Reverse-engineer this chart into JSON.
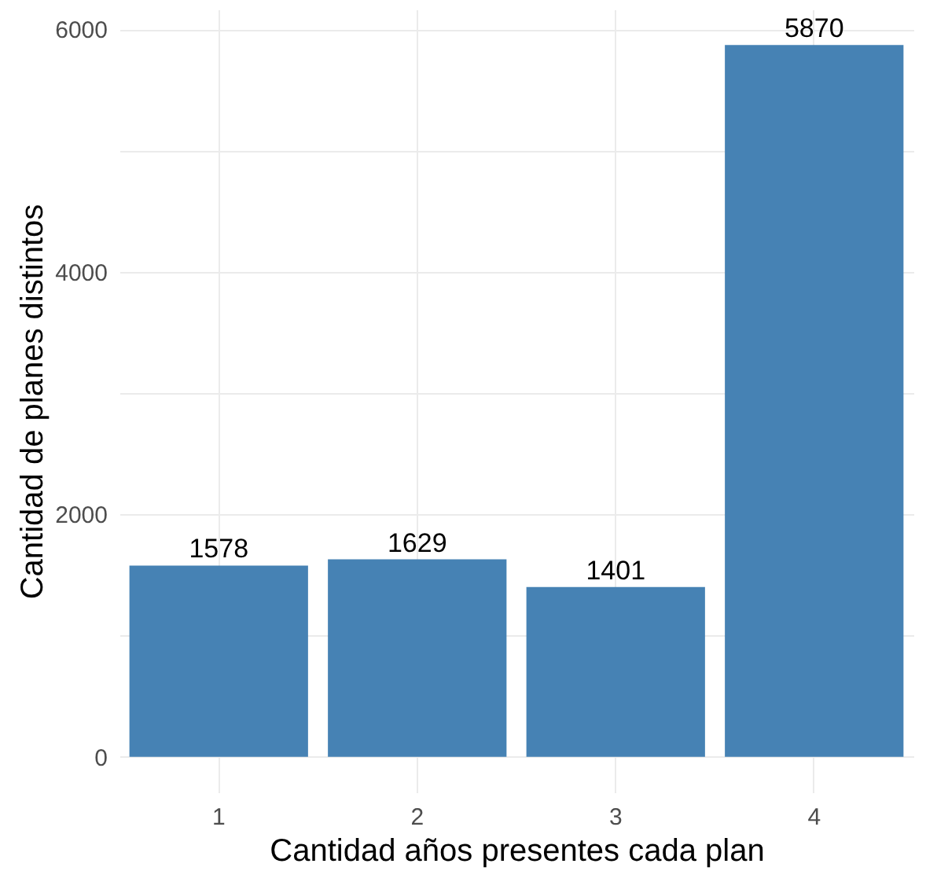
{
  "chart_data": {
    "type": "bar",
    "xlabel": "Cantidad años presentes cada plan",
    "ylabel": "Cantidad de planes distintos",
    "categories": [
      "1",
      "2",
      "3",
      "4"
    ],
    "values": [
      1578,
      1629,
      1401,
      5870
    ],
    "color": "#4682b4",
    "ylim": [
      -293,
      6164
    ],
    "yticks": [
      0,
      {
        "value": 1000,
        "label": null
      },
      2000,
      {
        "value": 3000,
        "label": null
      },
      4000,
      {
        "value": 5000,
        "label": null
      },
      6000
    ],
    "grid": true,
    "data_labels": true
  }
}
